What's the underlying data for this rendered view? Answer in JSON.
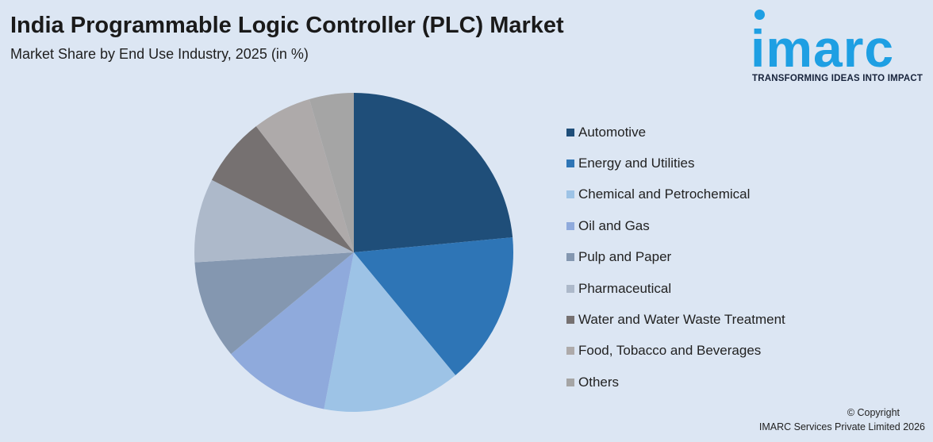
{
  "title": "India Programmable Logic Controller (PLC) Market",
  "subtitle": "Market Share by End Use Industry, 2025 (in %)",
  "logo": {
    "word": "imarc",
    "tagline": "TRANSFORMING IDEAS INTO IMPACT",
    "color": "#1e9fe3"
  },
  "copyright": {
    "line1": "© Copyright",
    "line2": "IMARC Services Private Limited 2026"
  },
  "chart_data": {
    "type": "pie",
    "title": "India Programmable Logic Controller (PLC) Market",
    "subtitle": "Market Share by End Use Industry, 2025 (in %)",
    "legend_position": "right",
    "start_angle": "12 o'clock",
    "direction": "clockwise",
    "slices": [
      {
        "label": "Automotive",
        "value": 23.5,
        "color": "#1f4e79"
      },
      {
        "label": "Energy and Utilities",
        "value": 15.5,
        "color": "#2e75b6"
      },
      {
        "label": "Chemical and Petrochemical",
        "value": 14.0,
        "color": "#9dc3e6"
      },
      {
        "label": "Oil and Gas",
        "value": 11.0,
        "color": "#8faadc"
      },
      {
        "label": "Pulp and Paper",
        "value": 10.0,
        "color": "#8497b0"
      },
      {
        "label": "Pharmaceutical",
        "value": 8.5,
        "color": "#adb9ca"
      },
      {
        "label": "Water and Water Waste Treatment",
        "value": 7.0,
        "color": "#767171"
      },
      {
        "label": "Food, Tobacco and Beverages",
        "value": 6.0,
        "color": "#aeaaaa"
      },
      {
        "label": "Others",
        "value": 4.5,
        "color": "#a5a5a5"
      }
    ]
  }
}
